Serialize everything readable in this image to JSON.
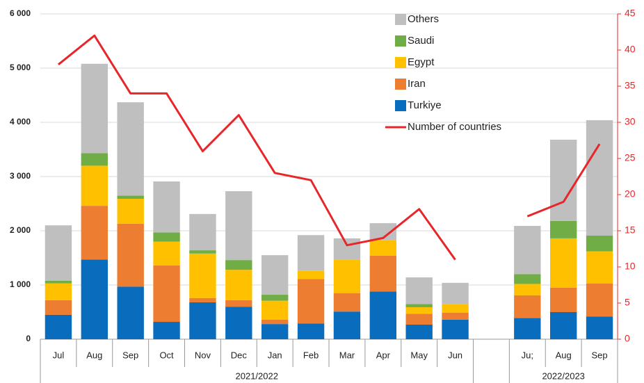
{
  "chart_data": {
    "type": "bar",
    "stacked": true,
    "categories": [
      "Jul",
      "Aug",
      "Sep",
      "Oct",
      "Nov",
      "Dec",
      "Jan",
      "Feb",
      "Mar",
      "Apr",
      "May",
      "Jun",
      null,
      "Ju;",
      "Aug",
      "Sep"
    ],
    "groups": [
      "2021/2022",
      "2022/2023"
    ],
    "series": [
      {
        "name": "Turkiye",
        "color": "#0a6cbd",
        "values": [
          450,
          1470,
          970,
          320,
          680,
          600,
          280,
          290,
          510,
          880,
          270,
          360,
          null,
          390,
          500,
          420
        ]
      },
      {
        "name": "Iran",
        "color": "#ed7d31",
        "values": [
          270,
          990,
          1160,
          1040,
          80,
          120,
          80,
          820,
          340,
          660,
          200,
          130,
          null,
          420,
          450,
          610
        ]
      },
      {
        "name": "Egypt",
        "color": "#ffc000",
        "values": [
          310,
          740,
          460,
          440,
          820,
          560,
          350,
          150,
          620,
          290,
          120,
          160,
          null,
          210,
          910,
          590
        ]
      },
      {
        "name": "Saudi",
        "color": "#70ad47",
        "values": [
          50,
          230,
          60,
          170,
          60,
          180,
          110,
          0,
          0,
          0,
          60,
          0,
          null,
          180,
          320,
          290
        ]
      },
      {
        "name": "Others",
        "color": "#bfbfbf",
        "values": [
          1020,
          1650,
          1720,
          940,
          670,
          1270,
          730,
          660,
          390,
          310,
          490,
          390,
          null,
          890,
          1500,
          2130
        ]
      },
      {
        "name": "Number of countries",
        "type": "line",
        "axis": "y2",
        "color": "#e8262a",
        "values": [
          38,
          42,
          34,
          34,
          26,
          31,
          23,
          22,
          13,
          14,
          18,
          11,
          null,
          17,
          19,
          27
        ]
      }
    ],
    "ylim": [
      0,
      6000
    ],
    "yticks": [
      0,
      {
        "value": 1000,
        "label": "1 000"
      },
      {
        "value": 2000,
        "label": "2 000"
      },
      {
        "value": 3000,
        "label": "3 000"
      },
      {
        "value": 4000,
        "label": "4 000"
      },
      {
        "value": 5000,
        "label": "5 000"
      },
      {
        "value": 6000,
        "label": "6 000"
      }
    ],
    "y2lim": [
      0,
      45
    ],
    "y2ticks": [
      0,
      5,
      10,
      15,
      20,
      25,
      30,
      35,
      40,
      45
    ],
    "y2_color": "#e8262a",
    "grid": true,
    "legend": "top"
  }
}
